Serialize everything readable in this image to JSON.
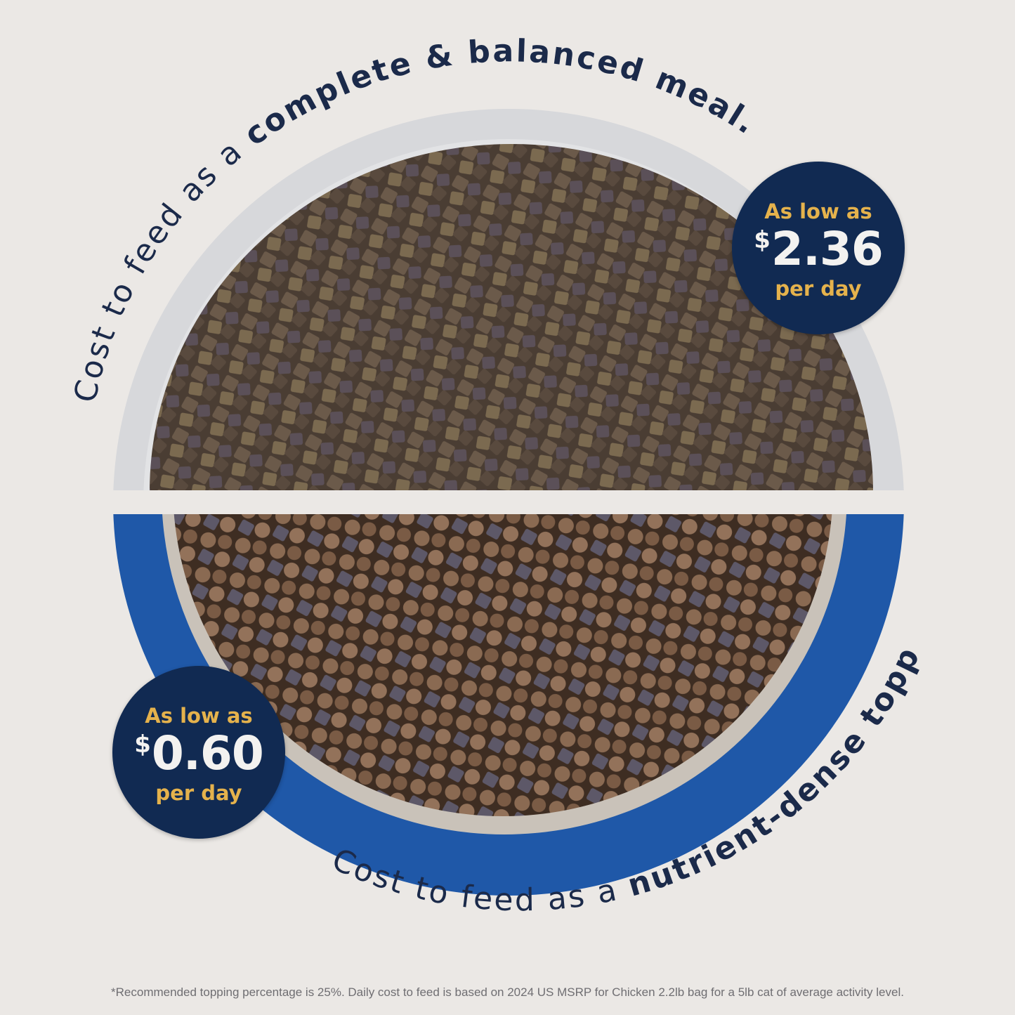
{
  "headline_top": {
    "regular": "Cost to feed as a ",
    "bold": "complete & balanced meal."
  },
  "headline_bottom": {
    "regular": "Cost to feed as a ",
    "bold": "nutrient-dense topper.",
    "mark": "*"
  },
  "badge_meal": {
    "line1": "As low as",
    "currency": "$",
    "amount": "2.36",
    "line3": "per day"
  },
  "badge_topper": {
    "line1": "As low as",
    "currency": "$",
    "amount": "0.60",
    "line3": "per day"
  },
  "footnote": "*Recommended topping percentage is 25%. Daily cost to feed is based on 2024 US MSRP for Chicken 2.2lb bag for a 5lb cat of average activity level.",
  "colors": {
    "navy": "#112a52",
    "gold": "#e5b24c",
    "bowl_blue": "#1f58a8",
    "bowl_gray": "#d6d7da",
    "background": "#ebe8e5"
  }
}
